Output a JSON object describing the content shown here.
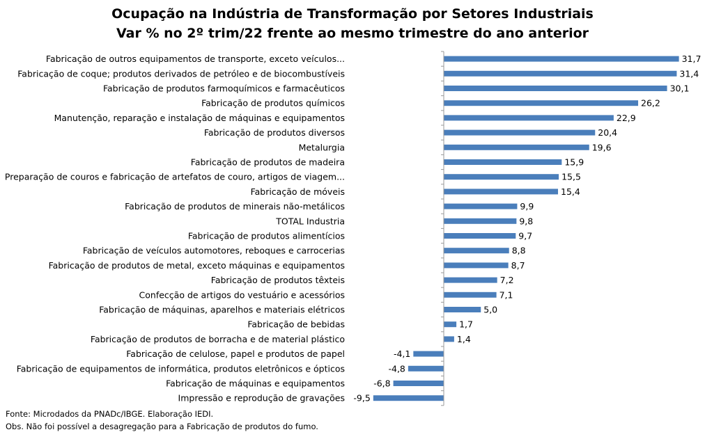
{
  "title": "Ocupação na Indústria de Transformação por Setores Industriais",
  "subtitle": "Var % no 2º trim/22 frente ao mesmo trimestre do ano anterior",
  "chart_data": {
    "type": "bar",
    "orientation": "horizontal",
    "categories": [
      "Fabricação de outros equipamentos de transporte, exceto veículos...",
      "Fabricação de coque; produtos derivados de petróleo e de biocombustíveis",
      "Fabricação de produtos farmoquímicos e farmacêuticos",
      "Fabricação de produtos químicos",
      "Manutenção, reparação e instalação de máquinas e equipamentos",
      "Fabricação de produtos diversos",
      "Metalurgia",
      "Fabricação de produtos de madeira",
      "Preparação de couros e fabricação de artefatos de couro, artigos de viagem...",
      "Fabricação de móveis",
      "Fabricação de produtos de minerais não-metálicos",
      "TOTAL Industria",
      "Fabricação de produtos alimentícios",
      "Fabricação de veículos automotores, reboques e carrocerias",
      "Fabricação de produtos de metal, exceto máquinas e equipamentos",
      "Fabricação de produtos têxteis",
      "Confecção de artigos do vestuário e acessórios",
      "Fabricação de máquinas, aparelhos e materiais elétricos",
      "Fabricação de bebidas",
      "Fabricação de produtos de borracha e de material plástico",
      "Fabricação de celulose, papel e produtos de papel",
      "Fabricação de equipamentos de informática, produtos eletrônicos e ópticos",
      "Fabricação de máquinas e equipamentos",
      "Impressão e reprodução de gravações"
    ],
    "values": [
      31.7,
      31.4,
      30.1,
      26.2,
      22.9,
      20.4,
      19.6,
      15.9,
      15.5,
      15.4,
      9.9,
      9.8,
      9.7,
      8.8,
      8.7,
      7.2,
      7.1,
      5.0,
      1.7,
      1.4,
      -4.1,
      -4.8,
      -6.8,
      -9.5
    ],
    "value_labels": [
      "31,7",
      "31,4",
      "30,1",
      "26,2",
      "22,9",
      "20,4",
      "19,6",
      "15,9",
      "15,5",
      "15,4",
      "9,9",
      "9,8",
      "9,7",
      "8,8",
      "8,7",
      "7,2",
      "7,1",
      "5,0",
      "1,7",
      "1,4",
      "-4,1",
      "-4,8",
      "-6,8",
      "-9,5"
    ],
    "xlim": [
      -9.5,
      31.7
    ],
    "bar_color": "#4a7ebb",
    "axis_color": "#9a9a9a",
    "grid": false,
    "legend": false
  },
  "notes": {
    "source": "Fonte: Microdados da PNADc/IBGE. Elaboração IEDI.",
    "obs": "Obs. Não foi possível a desagregação para a Fabricação de produtos do fumo."
  }
}
